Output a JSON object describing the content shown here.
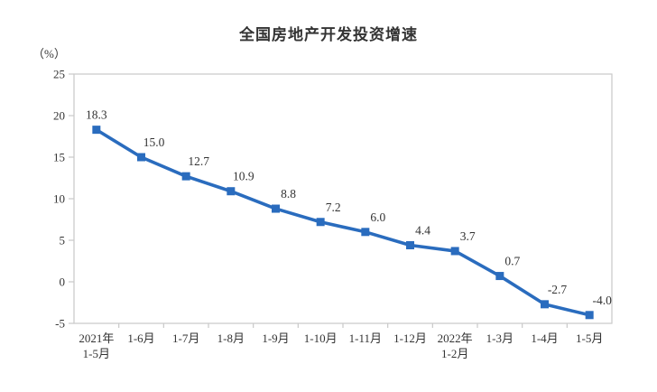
{
  "chart": {
    "title": "全国房地产开发投资增速",
    "unit_label": "（%）",
    "colors": {
      "line": "#2a6cbe",
      "marker": "#2a6cbe",
      "axis": "#c9c9c9",
      "text": "#333333",
      "background": "#ffffff"
    }
  },
  "chart_data": {
    "type": "line",
    "title": "全国房地产开发投资增速",
    "ylabel": "（%）",
    "categories": [
      "2021年\n1-5月",
      "1-6月",
      "1-7月",
      "1-8月",
      "1-9月",
      "1-10月",
      "1-11月",
      "1-12月",
      "2022年\n1-2月",
      "1-3月",
      "1-4月",
      "1-5月"
    ],
    "values": [
      18.3,
      15.0,
      12.7,
      10.9,
      8.8,
      7.2,
      6.0,
      4.4,
      3.7,
      0.7,
      -2.7,
      -4.0
    ],
    "value_labels": [
      "18.3",
      "15.0",
      "12.7",
      "10.9",
      "8.8",
      "7.2",
      "6.0",
      "4.4",
      "3.7",
      "0.7",
      "-2.7",
      "-4.0"
    ],
    "ylim": [
      -5,
      25
    ],
    "yticks": [
      25,
      20,
      15,
      10,
      5,
      0,
      -5
    ],
    "grid": false,
    "legend": "none",
    "marker": "square",
    "line_color": "#2a6cbe"
  }
}
